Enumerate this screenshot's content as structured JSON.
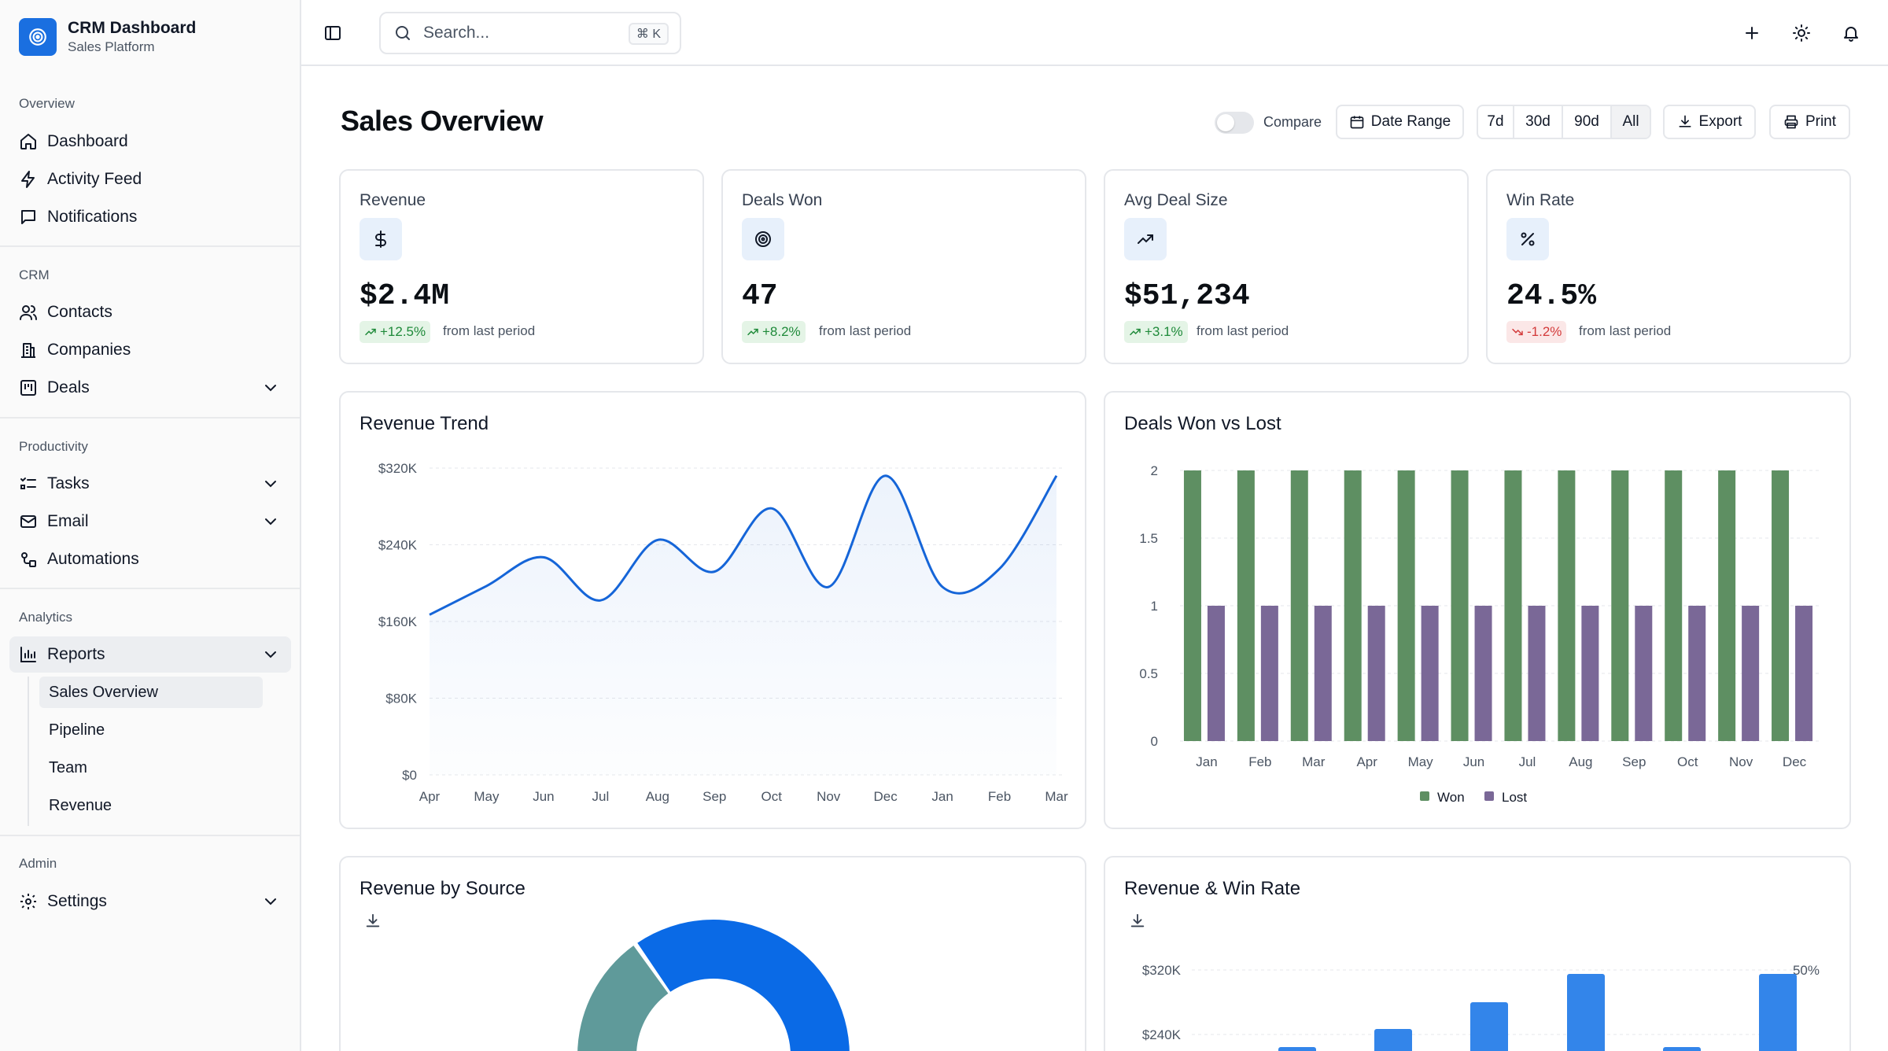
{
  "brand": {
    "title": "CRM Dashboard",
    "subtitle": "Sales Platform"
  },
  "sidebar": {
    "overview": {
      "label": "Overview",
      "items": [
        "Dashboard",
        "Activity Feed",
        "Notifications"
      ]
    },
    "crm": {
      "label": "CRM",
      "items": [
        "Contacts",
        "Companies",
        "Deals"
      ]
    },
    "productivity": {
      "label": "Productivity",
      "items": [
        "Tasks",
        "Email",
        "Automations"
      ]
    },
    "analytics": {
      "label": "Analytics",
      "items": [
        "Reports"
      ],
      "subitems": [
        "Sales Overview",
        "Pipeline",
        "Team",
        "Revenue"
      ],
      "active_subitem": "Sales Overview"
    },
    "admin": {
      "label": "Admin",
      "items": [
        "Settings"
      ]
    }
  },
  "search": {
    "placeholder": "Search...",
    "shortcut": "⌘ K"
  },
  "header": {
    "title": "Sales Overview",
    "compare_label": "Compare",
    "compare_on": false,
    "date_range_label": "Date Range",
    "periods": [
      "7d",
      "30d",
      "90d",
      "All"
    ],
    "selected_period": "All",
    "export_label": "Export",
    "print_label": "Print"
  },
  "kpis": [
    {
      "title": "Revenue",
      "icon": "dollar-icon",
      "value": "$2.4M",
      "delta": "+12.5%",
      "direction": "up",
      "note": "from last period"
    },
    {
      "title": "Deals Won",
      "icon": "target-icon",
      "value": "47",
      "delta": "+8.2%",
      "direction": "up",
      "note": "from last period"
    },
    {
      "title": "Avg Deal Size",
      "icon": "trending-up-icon",
      "value": "$51,234",
      "delta": "+3.1%",
      "direction": "up",
      "note": "from last period"
    },
    {
      "title": "Win Rate",
      "icon": "percent-icon",
      "value": "24.5%",
      "delta": "-1.2%",
      "direction": "down",
      "note": "from last period"
    }
  ],
  "colors": {
    "accent": "#1a6fe0",
    "won": "#5e8f62",
    "lost": "#7a6897",
    "line": "#1565d8",
    "bar": "#3385ea",
    "donut_blue": "#0a6ae6",
    "donut_teal": "#5f9a9a"
  },
  "chart_data": [
    {
      "type": "area",
      "title": "Revenue Trend",
      "x": [
        "Apr",
        "May",
        "Jun",
        "Jul",
        "Aug",
        "Sep",
        "Oct",
        "Nov",
        "Dec",
        "Jan",
        "Feb",
        "Mar"
      ],
      "y_ticks": [
        "$0",
        "$80K",
        "$160K",
        "$240K",
        "$320K"
      ],
      "ylim": [
        0,
        320000
      ],
      "series": [
        {
          "values": [
            167000,
            197000,
            227000,
            182000,
            245000,
            212000,
            278000,
            196000,
            312000,
            196000,
            215000,
            312000
          ]
        }
      ],
      "grid": true
    },
    {
      "type": "bar",
      "title": "Deals Won vs Lost",
      "categories": [
        "Jan",
        "Feb",
        "Mar",
        "Apr",
        "May",
        "Jun",
        "Jul",
        "Aug",
        "Sep",
        "Oct",
        "Nov",
        "Dec"
      ],
      "y_ticks": [
        "0",
        "0.5",
        "1",
        "1.5",
        "2"
      ],
      "ylim": [
        0,
        2
      ],
      "series": [
        {
          "name": "Won",
          "values": [
            2,
            2,
            2,
            2,
            2,
            2,
            2,
            2,
            2,
            2,
            2,
            2
          ]
        },
        {
          "name": "Lost",
          "values": [
            1,
            1,
            1,
            1,
            1,
            1,
            1,
            1,
            1,
            1,
            1,
            1
          ]
        }
      ],
      "legend": "bottom",
      "grid": true
    },
    {
      "type": "pie",
      "title": "Revenue by Source",
      "partial": true
    },
    {
      "type": "bar",
      "title": "Revenue & Win Rate",
      "y_ticks": [
        "$240K",
        "$320K"
      ],
      "y2_ticks": [
        "50%"
      ],
      "partial": true
    }
  ]
}
